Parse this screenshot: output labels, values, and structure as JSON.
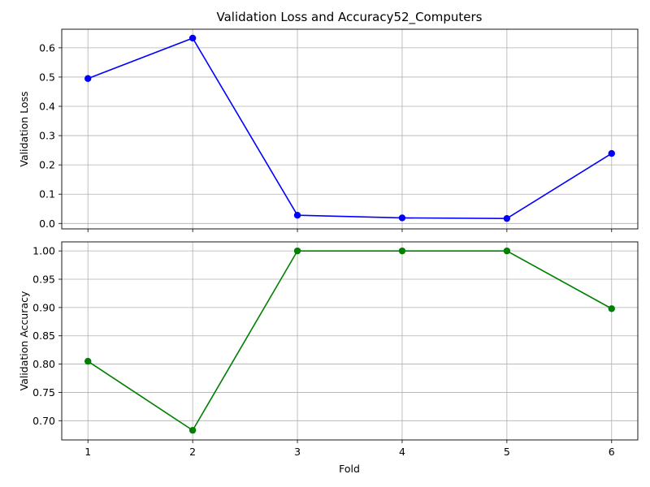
{
  "title": "Validation Loss and Accuracy52_Computers",
  "xlabel": "Fold",
  "chart_data": [
    {
      "type": "line",
      "title": "Validation Loss and Accuracy52_Computers",
      "xlabel": "",
      "ylabel": "Validation Loss",
      "x": [
        1,
        2,
        3,
        4,
        5,
        6
      ],
      "xticks": [
        "1",
        "2",
        "3",
        "4",
        "5",
        "6"
      ],
      "xlim": [
        0.75,
        6.25
      ],
      "ylim": [
        -0.0186,
        0.6634
      ],
      "yticks": [
        0.0,
        0.1,
        0.2,
        0.3,
        0.4,
        0.5,
        0.6
      ],
      "ytick_labels": [
        "0.0",
        "0.1",
        "0.2",
        "0.3",
        "0.4",
        "0.5",
        "0.6"
      ],
      "grid": true,
      "series": [
        {
          "values": [
            0.495,
            0.633,
            0.028,
            0.019,
            0.017,
            0.239
          ],
          "color": "#0000ff",
          "marker": "circle"
        }
      ]
    },
    {
      "type": "line",
      "title": "",
      "xlabel": "Fold",
      "ylabel": "Validation Accuracy",
      "x": [
        1,
        2,
        3,
        4,
        5,
        6
      ],
      "xticks": [
        "1",
        "2",
        "3",
        "4",
        "5",
        "6"
      ],
      "xlim": [
        0.75,
        6.25
      ],
      "ylim": [
        0.666,
        1.016
      ],
      "yticks": [
        0.7,
        0.75,
        0.8,
        0.85,
        0.9,
        0.95,
        1.0
      ],
      "ytick_labels": [
        "0.70",
        "0.75",
        "0.80",
        "0.85",
        "0.90",
        "0.95",
        "1.00"
      ],
      "grid": true,
      "series": [
        {
          "values": [
            0.805,
            0.683,
            1.0,
            1.0,
            1.0,
            0.898
          ],
          "color": "#008000",
          "marker": "circle"
        }
      ]
    }
  ]
}
